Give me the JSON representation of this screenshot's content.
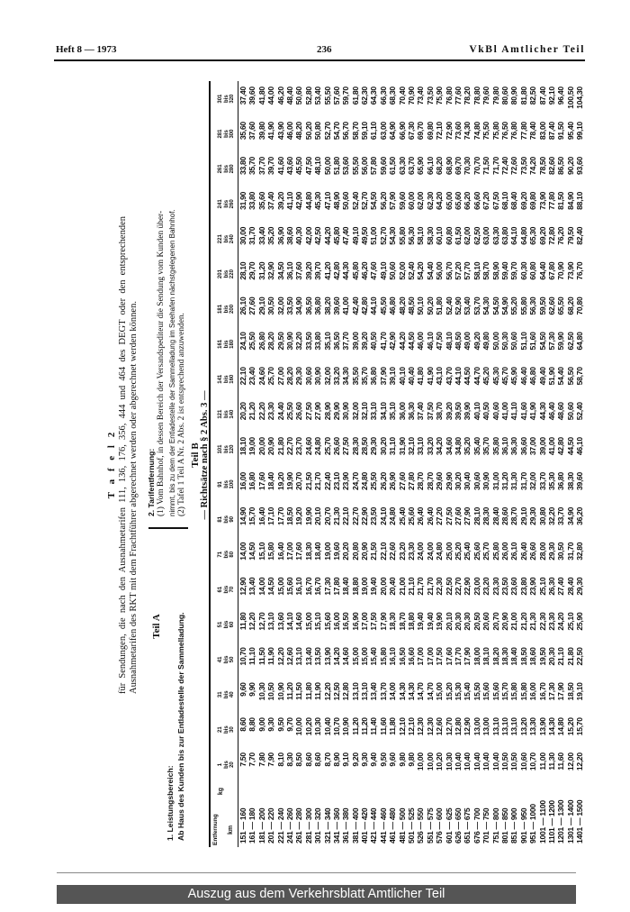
{
  "header": {
    "left": "Heft 8 — 1973",
    "page": "236",
    "right": "VkBl Amtlicher Teil"
  },
  "title": "T a f e l  2",
  "intro": "für Sendungen, die nach den Ausnahmetarifen 111, 136, 176, 356, 444 und 464 des DEGT oder den entsprechenden Ausnahmetarifen des RKT mit dem Frachtführer abgerechnet werden oder abgerechnet werden können.",
  "teil_a": "Teil A",
  "section1": {
    "title": "1. Leistungsbereich:",
    "text": "Ab Haus des Kunden bis zur Entladestelle der Sammelladung."
  },
  "section2": {
    "title": "2. Tarifentfernung:",
    "p1a": "(1) Vom Bahnhof, in dessen Bereich der Versandspediteur die Sendung vom Kunden über-",
    "p1b": "nimmt, bis zu dem der Entladestelle der Sammelladung im Seehafen nächstgelegenen Bahnhof.",
    "p2": "(2) Tafel 1 Teil A Nr. 2 Abs. 2 ist entsprechend anzuwenden."
  },
  "teil_b": "Teil B",
  "richtsaetze": "— Richtsätze nach § 2 Abs. 3 —",
  "table": {
    "label_entfernung": "Entfernung",
    "label_kg": "kg",
    "label_km": "km",
    "bis": "bis",
    "columns": [
      {
        "from": "1",
        "to": "20"
      },
      {
        "from": "21",
        "to": "30"
      },
      {
        "from": "31",
        "to": "40"
      },
      {
        "from": "41",
        "to": "50"
      },
      {
        "from": "51",
        "to": "60"
      },
      {
        "from": "61",
        "to": "70"
      },
      {
        "from": "71",
        "to": "80"
      },
      {
        "from": "81",
        "to": "90"
      },
      {
        "from": "91",
        "to": "100"
      },
      {
        "from": "101",
        "to": "120"
      },
      {
        "from": "121",
        "to": "140"
      },
      {
        "from": "141",
        "to": "160"
      },
      {
        "from": "161",
        "to": "180"
      },
      {
        "from": "181",
        "to": "200"
      },
      {
        "from": "201",
        "to": "220"
      },
      {
        "from": "221",
        "to": "240"
      },
      {
        "from": "241",
        "to": "260"
      },
      {
        "from": "261",
        "to": "280"
      },
      {
        "from": "281",
        "to": "300"
      },
      {
        "from": "301",
        "to": "320"
      }
    ],
    "rows": [
      {
        "range": "151 — 160",
        "values": [
          "7,50",
          "8,60",
          "9,60",
          "10,70",
          "11,80",
          "12,90",
          "14,00",
          "14,90",
          "16,00",
          "18,10",
          "20,20",
          "22,10",
          "24,10",
          "26,10",
          "28,10",
          "30,00",
          "31,90",
          "33,80",
          "35,60",
          "37,40"
        ]
      },
      {
        "range": "161 — 180",
        "values": [
          "7,70",
          "8,80",
          "9,90",
          "11,10",
          "12,20",
          "13,40",
          "14,50",
          "15,70",
          "16,80",
          "19,00",
          "21,20",
          "23,40",
          "25,50",
          "27,60",
          "29,70",
          "31,70",
          "33,80",
          "35,70",
          "37,60",
          "39,60"
        ]
      },
      {
        "range": "181 — 200",
        "values": [
          "7,80",
          "9,00",
          "10,30",
          "11,50",
          "12,70",
          "14,00",
          "15,10",
          "16,40",
          "17,60",
          "20,00",
          "22,20",
          "24,60",
          "26,80",
          "29,10",
          "31,20",
          "33,40",
          "35,60",
          "37,70",
          "39,80",
          "41,80"
        ]
      },
      {
        "range": "201 — 220",
        "values": [
          "7,90",
          "9,30",
          "10,50",
          "11,90",
          "13,10",
          "14,50",
          "15,80",
          "17,10",
          "18,40",
          "20,90",
          "23,30",
          "25,70",
          "28,20",
          "30,50",
          "32,90",
          "35,20",
          "37,40",
          "39,70",
          "41,90",
          "44,00"
        ]
      },
      {
        "range": "221 — 240",
        "values": [
          "8,10",
          "9,50",
          "10,90",
          "12,20",
          "13,60",
          "15,00",
          "16,40",
          "17,70",
          "19,20",
          "21,80",
          "24,40",
          "27,00",
          "29,50",
          "32,00",
          "34,50",
          "36,90",
          "39,20",
          "41,60",
          "43,90",
          "46,20"
        ]
      },
      {
        "range": "241 — 260",
        "values": [
          "8,30",
          "9,70",
          "11,20",
          "12,60",
          "14,10",
          "15,60",
          "17,00",
          "18,50",
          "19,90",
          "22,70",
          "25,50",
          "28,20",
          "30,90",
          "33,50",
          "36,10",
          "38,60",
          "41,10",
          "43,60",
          "46,00",
          "48,40"
        ]
      },
      {
        "range": "261 — 280",
        "values": [
          "8,50",
          "10,00",
          "11,50",
          "13,10",
          "14,60",
          "16,10",
          "17,60",
          "19,20",
          "20,70",
          "23,70",
          "26,60",
          "29,30",
          "32,20",
          "34,90",
          "37,60",
          "40,30",
          "42,90",
          "45,50",
          "48,20",
          "50,60"
        ]
      },
      {
        "range": "281 — 300",
        "values": [
          "8,60",
          "10,20",
          "11,80",
          "13,40",
          "15,00",
          "16,70",
          "18,30",
          "19,90",
          "21,50",
          "24,60",
          "27,50",
          "30,60",
          "33,50",
          "36,50",
          "39,20",
          "42,00",
          "44,80",
          "47,50",
          "50,20",
          "52,80"
        ]
      },
      {
        "range": "301 — 320",
        "values": [
          "8,60",
          "10,30",
          "11,90",
          "13,50",
          "15,10",
          "16,70",
          "18,40",
          "20,10",
          "21,70",
          "24,80",
          "27,90",
          "30,90",
          "33,80",
          "36,80",
          "39,70",
          "42,50",
          "45,30",
          "48,10",
          "50,80",
          "53,40"
        ]
      },
      {
        "range": "321 — 340",
        "values": [
          "8,70",
          "10,40",
          "12,20",
          "13,90",
          "15,60",
          "17,30",
          "19,00",
          "20,70",
          "22,40",
          "25,70",
          "28,90",
          "32,00",
          "35,10",
          "38,20",
          "41,20",
          "44,20",
          "47,10",
          "50,00",
          "52,70",
          "55,50"
        ]
      },
      {
        "range": "341 — 360",
        "values": [
          "8,90",
          "10,70",
          "12,50",
          "14,20",
          "16,00",
          "17,80",
          "19,60",
          "21,30",
          "23,10",
          "26,60",
          "29,90",
          "33,20",
          "36,50",
          "39,60",
          "42,80",
          "45,80",
          "48,90",
          "51,80",
          "54,70",
          "57,60"
        ]
      },
      {
        "range": "361 — 380",
        "values": [
          "9,10",
          "10,90",
          "12,80",
          "14,60",
          "16,50",
          "18,40",
          "20,20",
          "22,10",
          "23,90",
          "27,50",
          "30,90",
          "34,30",
          "37,70",
          "41,00",
          "44,30",
          "47,40",
          "50,60",
          "53,60",
          "56,70",
          "59,70"
        ]
      },
      {
        "range": "381 — 400",
        "values": [
          "9,20",
          "11,20",
          "13,10",
          "15,00",
          "16,90",
          "18,80",
          "20,80",
          "22,70",
          "24,70",
          "28,30",
          "32,00",
          "35,50",
          "39,00",
          "42,40",
          "45,80",
          "49,10",
          "52,40",
          "55,50",
          "58,70",
          "61,80"
        ]
      },
      {
        "range": "401 — 420",
        "values": [
          "9,30",
          "11,20",
          "13,10",
          "15,00",
          "17,00",
          "19,00",
          "20,90",
          "22,90",
          "24,80",
          "28,50",
          "32,10",
          "35,70",
          "39,20",
          "42,80",
          "46,20",
          "49,50",
          "52,70",
          "56,00",
          "59,10",
          "62,30"
        ]
      },
      {
        "range": "421 — 440",
        "values": [
          "9,40",
          "11,40",
          "13,40",
          "15,40",
          "17,50",
          "19,40",
          "21,50",
          "23,50",
          "25,50",
          "29,30",
          "33,10",
          "36,80",
          "40,50",
          "44,10",
          "47,60",
          "51,00",
          "54,50",
          "57,80",
          "61,10",
          "64,30"
        ]
      },
      {
        "range": "441 — 460",
        "values": [
          "9,50",
          "11,60",
          "13,70",
          "15,80",
          "17,90",
          "20,00",
          "22,10",
          "24,10",
          "26,20",
          "30,20",
          "34,10",
          "37,90",
          "41,70",
          "45,50",
          "49,10",
          "52,70",
          "56,20",
          "59,60",
          "63,00",
          "66,30"
        ]
      },
      {
        "range": "461 — 480",
        "values": [
          "9,60",
          "11,80",
          "14,00",
          "16,10",
          "18,30",
          "20,40",
          "22,60",
          "24,80",
          "26,90",
          "31,10",
          "35,10",
          "39,10",
          "42,90",
          "46,80",
          "50,60",
          "54,30",
          "57,90",
          "61,50",
          "64,90",
          "68,30"
        ]
      },
      {
        "range": "481 — 500",
        "values": [
          "9,80",
          "12,10",
          "14,30",
          "16,50",
          "18,70",
          "21,00",
          "23,20",
          "25,40",
          "27,60",
          "31,90",
          "36,00",
          "40,10",
          "44,20",
          "48,20",
          "52,00",
          "55,80",
          "59,60",
          "63,30",
          "66,90",
          "70,40"
        ]
      },
      {
        "range": "501 — 525",
        "values": [
          "9,80",
          "12,10",
          "14,30",
          "16,60",
          "18,80",
          "21,10",
          "23,30",
          "25,60",
          "27,80",
          "32,10",
          "36,30",
          "40,40",
          "44,50",
          "48,50",
          "52,40",
          "56,30",
          "60,00",
          "63,70",
          "67,30",
          "70,90"
        ]
      },
      {
        "range": "526 — 550",
        "values": [
          "10,00",
          "12,30",
          "14,70",
          "17,00",
          "19,40",
          "21,70",
          "24,00",
          "26,40",
          "28,70",
          "33,10",
          "37,40",
          "41,80",
          "46,00",
          "50,10",
          "54,20",
          "58,10",
          "62,00",
          "65,90",
          "69,70",
          "73,40"
        ]
      },
      {
        "range": "551 — 575",
        "values": [
          "10,00",
          "12,30",
          "14,70",
          "17,00",
          "19,40",
          "21,70",
          "24,00",
          "26,40",
          "28,70",
          "33,20",
          "37,50",
          "41,90",
          "46,10",
          "50,20",
          "54,40",
          "58,30",
          "62,30",
          "66,10",
          "69,80",
          "73,50"
        ]
      },
      {
        "range": "576 — 600",
        "values": [
          "10,20",
          "12,60",
          "15,00",
          "17,50",
          "19,90",
          "22,30",
          "24,80",
          "27,20",
          "29,60",
          "34,20",
          "38,70",
          "43,10",
          "47,50",
          "51,80",
          "56,00",
          "60,10",
          "64,20",
          "68,20",
          "72,10",
          "75,90"
        ]
      },
      {
        "range": "601 — 625",
        "values": [
          "10,30",
          "12,70",
          "15,20",
          "17,60",
          "20,10",
          "22,50",
          "25,00",
          "27,50",
          "29,90",
          "34,60",
          "39,20",
          "43,70",
          "48,10",
          "52,40",
          "56,70",
          "60,80",
          "65,00",
          "68,90",
          "72,90",
          "76,80"
        ]
      },
      {
        "range": "626 — 650",
        "values": [
          "10,40",
          "12,80",
          "15,30",
          "17,70",
          "20,30",
          "22,70",
          "25,20",
          "27,60",
          "30,20",
          "34,80",
          "39,50",
          "44,10",
          "48,50",
          "52,90",
          "57,20",
          "61,50",
          "65,60",
          "69,70",
          "73,60",
          "77,60"
        ]
      },
      {
        "range": "651 — 675",
        "values": [
          "10,40",
          "12,90",
          "15,40",
          "17,90",
          "20,30",
          "22,90",
          "25,40",
          "27,90",
          "30,40",
          "35,20",
          "39,90",
          "44,50",
          "49,00",
          "53,40",
          "57,70",
          "62,00",
          "66,20",
          "70,30",
          "74,30",
          "78,20"
        ]
      },
      {
        "range": "676 — 700",
        "values": [
          "10,40",
          "13,00",
          "15,50",
          "18,00",
          "20,50",
          "23,00",
          "25,60",
          "28,10",
          "30,60",
          "35,40",
          "40,10",
          "44,70",
          "49,20",
          "53,70",
          "58,10",
          "62,50",
          "66,60",
          "70,70",
          "74,80",
          "78,80"
        ]
      },
      {
        "range": "701 — 750",
        "values": [
          "10,40",
          "13,00",
          "15,60",
          "18,10",
          "20,60",
          "23,20",
          "25,70",
          "28,30",
          "30,90",
          "35,70",
          "40,50",
          "45,20",
          "49,80",
          "54,30",
          "58,70",
          "63,00",
          "67,20",
          "71,50",
          "75,50",
          "79,60"
        ]
      },
      {
        "range": "751 — 800",
        "values": [
          "10,40",
          "13,10",
          "15,60",
          "18,20",
          "20,70",
          "23,30",
          "25,80",
          "28,40",
          "31,00",
          "35,80",
          "40,60",
          "45,30",
          "50,00",
          "54,50",
          "58,90",
          "63,30",
          "67,50",
          "71,70",
          "75,80",
          "79,80"
        ]
      },
      {
        "range": "801 — 850",
        "values": [
          "10,50",
          "13,10",
          "15,70",
          "18,30",
          "20,90",
          "23,50",
          "26,00",
          "28,60",
          "31,20",
          "36,10",
          "41,00",
          "45,70",
          "50,30",
          "54,90",
          "59,40",
          "63,80",
          "68,10",
          "72,40",
          "76,50",
          "80,60"
        ]
      },
      {
        "range": "851 — 900",
        "values": [
          "10,50",
          "13,10",
          "15,80",
          "18,40",
          "21,00",
          "23,60",
          "26,10",
          "28,70",
          "31,30",
          "36,30",
          "41,10",
          "45,90",
          "50,60",
          "55,20",
          "59,70",
          "64,10",
          "68,40",
          "72,60",
          "76,80",
          "80,90"
        ]
      },
      {
        "range": "901 — 950",
        "values": [
          "10,60",
          "13,20",
          "15,80",
          "18,50",
          "21,20",
          "23,80",
          "26,40",
          "29,10",
          "31,70",
          "36,60",
          "41,60",
          "46,40",
          "51,10",
          "55,80",
          "60,30",
          "64,80",
          "69,20",
          "73,50",
          "77,80",
          "81,80"
        ]
      },
      {
        "range": "951 — 1000",
        "values": [
          "10,70",
          "13,30",
          "16,00",
          "18,60",
          "21,30",
          "23,90",
          "26,60",
          "29,30",
          "32,00",
          "37,00",
          "41,90",
          "46,80",
          "51,60",
          "56,30",
          "60,80",
          "65,30",
          "69,80",
          "74,20",
          "78,40",
          "82,50"
        ]
      },
      {
        "range": "1001 — 1100",
        "values": [
          "11,00",
          "13,90",
          "16,70",
          "19,50",
          "22,30",
          "25,10",
          "28,00",
          "30,80",
          "33,70",
          "39,00",
          "44,30",
          "49,40",
          "54,50",
          "59,50",
          "64,40",
          "69,20",
          "73,90",
          "78,50",
          "83,00",
          "87,40"
        ]
      },
      {
        "range": "1101 — 1200",
        "values": [
          "11,30",
          "14,30",
          "17,30",
          "20,30",
          "23,30",
          "26,30",
          "29,30",
          "32,20",
          "35,30",
          "41,00",
          "46,40",
          "51,90",
          "57,30",
          "62,60",
          "67,80",
          "72,80",
          "77,80",
          "82,60",
          "87,40",
          "92,10"
        ]
      },
      {
        "range": "1201 — 1300",
        "values": [
          "11,60",
          "14,80",
          "17,90",
          "21,10",
          "24,20",
          "27,40",
          "30,50",
          "33,70",
          "36,80",
          "42,80",
          "48,60",
          "54,40",
          "59,90",
          "65,50",
          "70,90",
          "76,20",
          "81,50",
          "86,50",
          "91,50",
          "96,40"
        ]
      },
      {
        "range": "1301 — 1400",
        "values": [
          "12,00",
          "15,20",
          "18,50",
          "21,80",
          "25,10",
          "28,40",
          "31,70",
          "34,90",
          "38,30",
          "44,50",
          "50,60",
          "56,50",
          "62,50",
          "68,20",
          "73,90",
          "79,50",
          "84,90",
          "90,20",
          "95,40",
          "100,50"
        ]
      },
      {
        "range": "1401 — 1500",
        "values": [
          "12,20",
          "15,70",
          "19,10",
          "22,50",
          "25,90",
          "29,30",
          "32,80",
          "36,20",
          "39,60",
          "46,10",
          "52,40",
          "58,70",
          "64,80",
          "70,80",
          "76,70",
          "82,40",
          "88,10",
          "93,60",
          "99,10",
          "104,30"
        ]
      }
    ]
  },
  "footer": "Auszug aus dem Verkehrsblatt Amtlicher Teil",
  "colors": {
    "footer_bar": "#555555",
    "ink": "#111111"
  }
}
